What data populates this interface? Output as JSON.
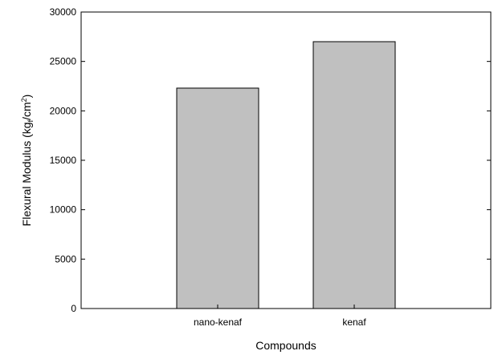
{
  "chart_data": {
    "type": "bar",
    "categories": [
      "nano-kenaf",
      "kenaf"
    ],
    "values": [
      22300,
      27000
    ],
    "title": "",
    "xlabel": "Compounds",
    "ylabel": "Flexural Modulus (kg",
    "ylabel_sub": "f",
    "ylabel_tail": "/cm",
    "ylabel_sup": "2",
    "ylabel_end": ")",
    "ylim": [
      0,
      30000
    ],
    "yticks": [
      0,
      5000,
      10000,
      15000,
      20000,
      25000,
      30000
    ],
    "bar_color": "#c0c0c0",
    "grid": false
  }
}
